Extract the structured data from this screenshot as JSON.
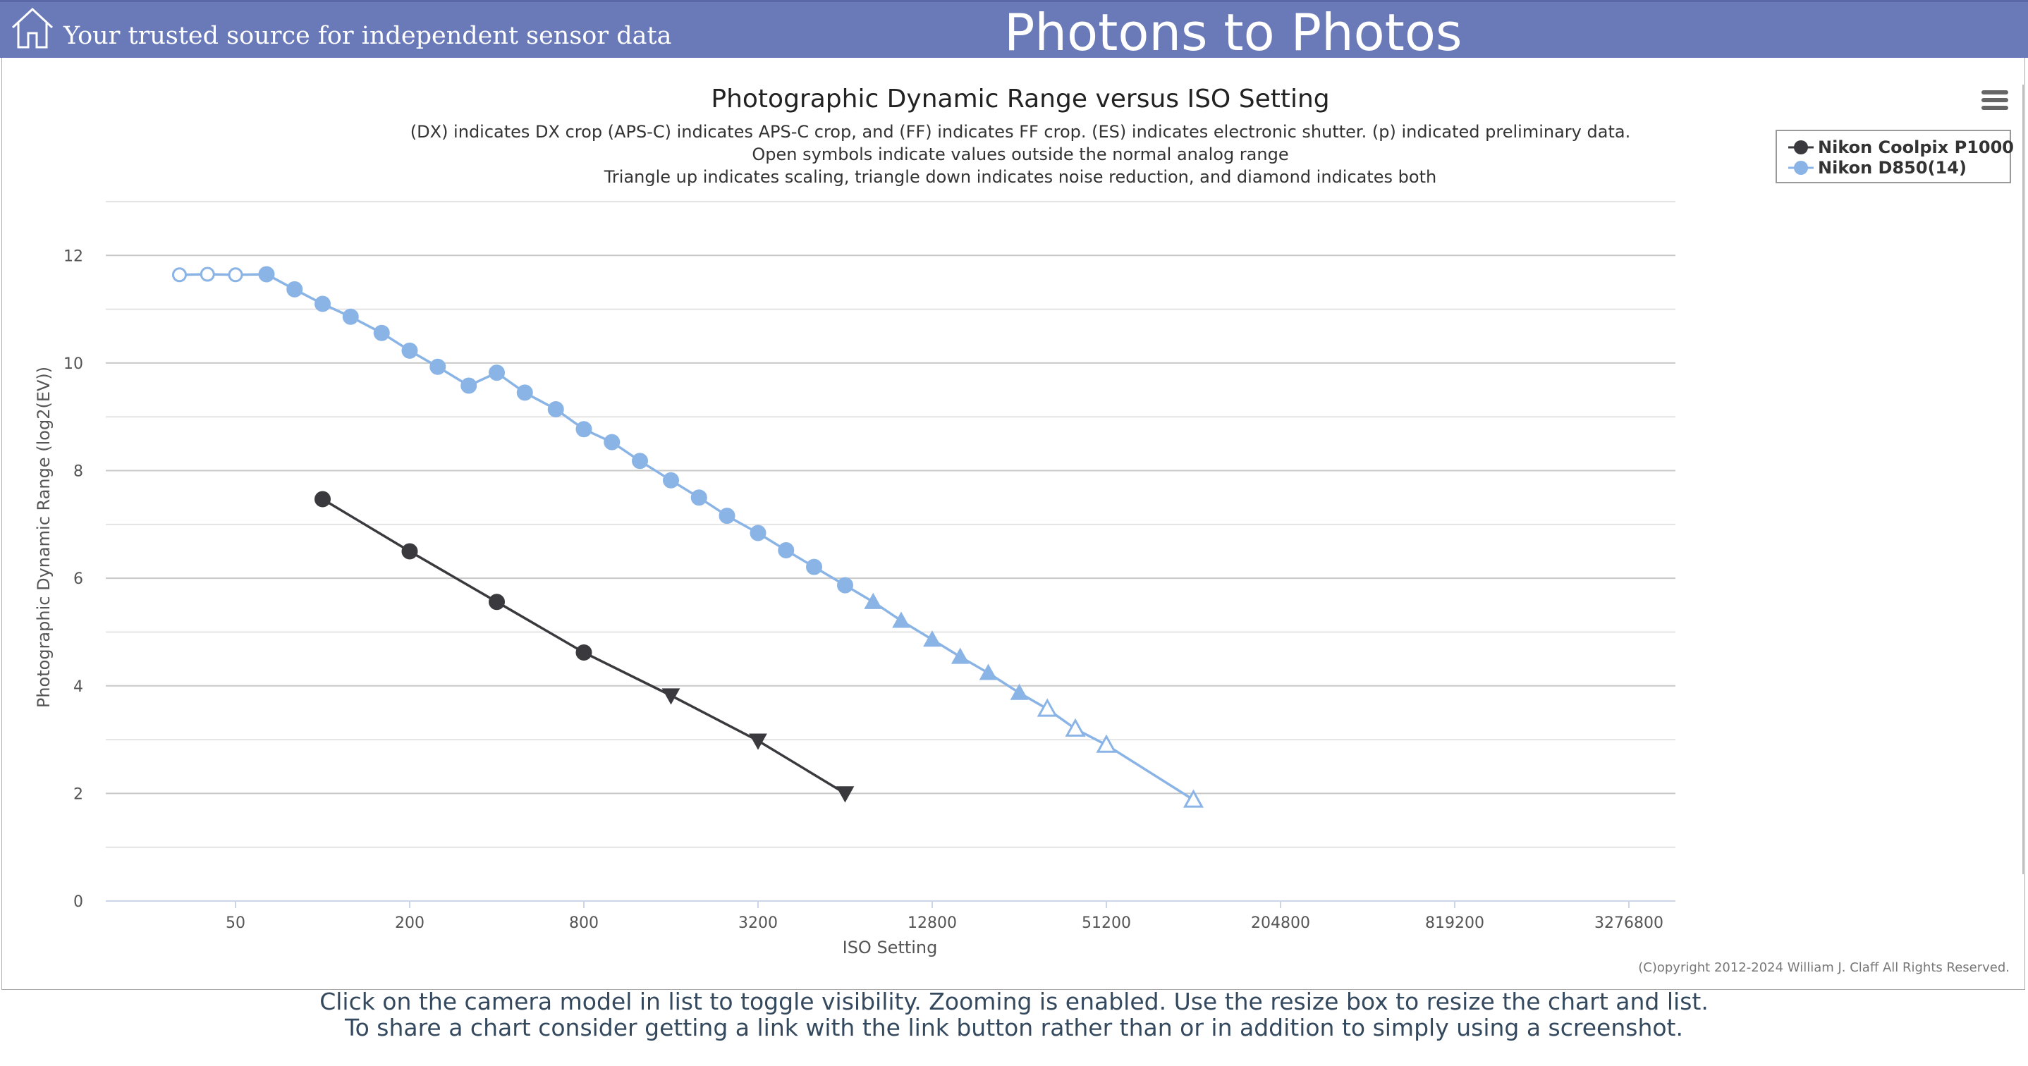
{
  "header": {
    "tagline": "Your trusted source for independent sensor data",
    "site_title": "Photons to Photos",
    "home_icon": "home-icon"
  },
  "chart_menu_icon": "hamburger-menu-icon",
  "chart_data": {
    "type": "line",
    "title": "Photographic Dynamic Range versus ISO Setting",
    "subtitle": [
      "(DX) indicates DX crop (APS-C) indicates APS-C crop, and (FF) indicates FF crop. (ES) indicates electronic shutter. (p) indicated preliminary data.",
      "Open symbols indicate values outside the normal analog range",
      "Triangle up indicates scaling, triangle down indicates noise reduction, and diamond indicates both"
    ],
    "xlabel": "ISO Setting",
    "ylabel": "Photographic Dynamic Range (log2(EV))",
    "x_scale": "log2",
    "x_ticks": [
      50,
      200,
      800,
      3200,
      12800,
      51200,
      204800,
      819200,
      3276800
    ],
    "y_ticks": [
      0,
      2,
      4,
      6,
      8,
      10,
      12
    ],
    "ylim": [
      0,
      13
    ],
    "legend_position": "top-right",
    "series": [
      {
        "name": "Nikon Coolpix P1000",
        "color": "#3a3a3e",
        "points": [
          {
            "x": 100,
            "y": 7.47,
            "marker": "circle"
          },
          {
            "x": 200,
            "y": 6.5,
            "marker": "circle"
          },
          {
            "x": 400,
            "y": 5.56,
            "marker": "circle"
          },
          {
            "x": 800,
            "y": 4.62,
            "marker": "circle"
          },
          {
            "x": 1600,
            "y": 3.82,
            "marker": "triangle-down"
          },
          {
            "x": 3200,
            "y": 2.98,
            "marker": "triangle-down"
          },
          {
            "x": 6400,
            "y": 2.0,
            "marker": "triangle-down"
          }
        ]
      },
      {
        "name": "Nikon D850(14)",
        "color": "#8ab4e6",
        "points": [
          {
            "x": 32,
            "y": 11.64,
            "marker": "circle-open"
          },
          {
            "x": 40,
            "y": 11.65,
            "marker": "circle-open"
          },
          {
            "x": 50,
            "y": 11.64,
            "marker": "circle-open"
          },
          {
            "x": 64,
            "y": 11.65,
            "marker": "circle"
          },
          {
            "x": 80,
            "y": 11.37,
            "marker": "circle"
          },
          {
            "x": 100,
            "y": 11.1,
            "marker": "circle"
          },
          {
            "x": 125,
            "y": 10.86,
            "marker": "circle"
          },
          {
            "x": 160,
            "y": 10.56,
            "marker": "circle"
          },
          {
            "x": 200,
            "y": 10.23,
            "marker": "circle"
          },
          {
            "x": 250,
            "y": 9.93,
            "marker": "circle"
          },
          {
            "x": 320,
            "y": 9.58,
            "marker": "circle"
          },
          {
            "x": 400,
            "y": 9.82,
            "marker": "circle"
          },
          {
            "x": 500,
            "y": 9.45,
            "marker": "circle"
          },
          {
            "x": 640,
            "y": 9.14,
            "marker": "circle"
          },
          {
            "x": 800,
            "y": 8.77,
            "marker": "circle"
          },
          {
            "x": 1000,
            "y": 8.53,
            "marker": "circle"
          },
          {
            "x": 1250,
            "y": 8.18,
            "marker": "circle"
          },
          {
            "x": 1600,
            "y": 7.82,
            "marker": "circle"
          },
          {
            "x": 2000,
            "y": 7.5,
            "marker": "circle"
          },
          {
            "x": 2500,
            "y": 7.16,
            "marker": "circle"
          },
          {
            "x": 3200,
            "y": 6.84,
            "marker": "circle"
          },
          {
            "x": 4000,
            "y": 6.52,
            "marker": "circle"
          },
          {
            "x": 5000,
            "y": 6.21,
            "marker": "circle"
          },
          {
            "x": 6400,
            "y": 5.87,
            "marker": "circle"
          },
          {
            "x": 8000,
            "y": 5.56,
            "marker": "triangle-up"
          },
          {
            "x": 10000,
            "y": 5.21,
            "marker": "triangle-up"
          },
          {
            "x": 12800,
            "y": 4.86,
            "marker": "triangle-up"
          },
          {
            "x": 16000,
            "y": 4.54,
            "marker": "triangle-up"
          },
          {
            "x": 20000,
            "y": 4.24,
            "marker": "triangle-up"
          },
          {
            "x": 25600,
            "y": 3.87,
            "marker": "triangle-up"
          },
          {
            "x": 32000,
            "y": 3.57,
            "marker": "triangle-up-open"
          },
          {
            "x": 40000,
            "y": 3.2,
            "marker": "triangle-up-open"
          },
          {
            "x": 51200,
            "y": 2.9,
            "marker": "triangle-up-open"
          },
          {
            "x": 102400,
            "y": 1.88,
            "marker": "triangle-up-open"
          }
        ]
      }
    ],
    "credit": "(C)opyright 2012-2024 William J. Claff All Rights Reserved."
  },
  "footer": {
    "line1": "Click on the camera model in list to toggle visibility. Zooming is enabled. Use the resize box to resize the chart and list.",
    "line2": "To share a chart consider getting a link with the link button rather than or in addition to simply using a screenshot."
  }
}
